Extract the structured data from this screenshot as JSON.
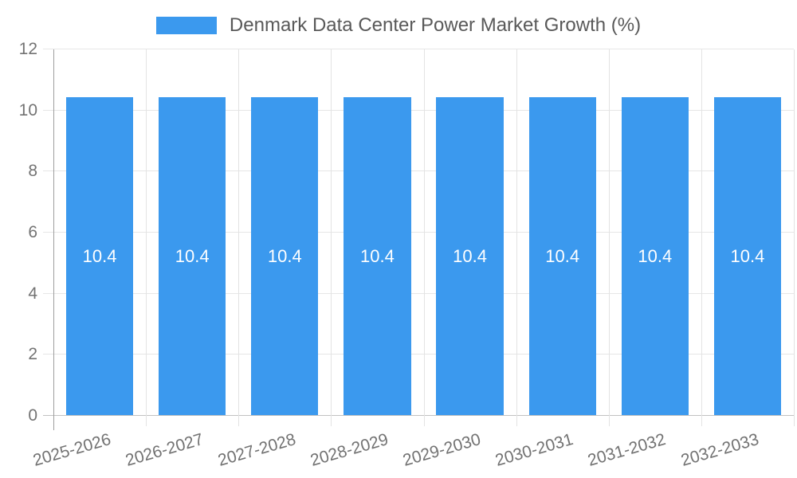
{
  "chart_data": {
    "type": "bar",
    "title": "Denmark Data Center Power Market Growth (%)",
    "categories": [
      "2025-2026",
      "2026-2027",
      "2027-2028",
      "2028-2029",
      "2029-2030",
      "2030-2031",
      "2031-2032",
      "2032-2033"
    ],
    "values": [
      10.4,
      10.4,
      10.4,
      10.4,
      10.4,
      10.4,
      10.4,
      10.4
    ],
    "value_label_format": "one_decimal",
    "xlabel": "",
    "ylabel": "",
    "ylim": [
      0,
      12
    ],
    "yticks": [
      0,
      2,
      4,
      6,
      8,
      10,
      12
    ],
    "grid": true,
    "legend_position": "top",
    "colors": {
      "bar": "#3b99ee",
      "bar_value_text": "#ffffff",
      "tick_text": "#737373",
      "legend_text": "#595959",
      "gridline": "#e6e6e6",
      "axis_line": "#9d9d9d",
      "zero_line": "#c2c2c2"
    }
  }
}
